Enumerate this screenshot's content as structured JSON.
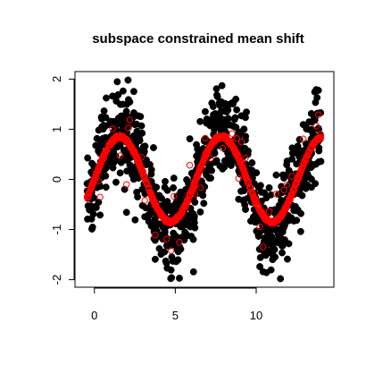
{
  "chart_data": {
    "type": "scatter",
    "title": "subspace constrained mean shift",
    "xlabel": "",
    "ylabel": "",
    "xlim": [
      -1.2,
      14.8
    ],
    "ylim": [
      -2.15,
      2.15
    ],
    "xticks": [
      0,
      5,
      10
    ],
    "xtick_labels": [
      "0",
      "5",
      "10"
    ],
    "yticks": [
      -2,
      -1,
      0,
      1,
      2
    ],
    "ytick_labels": [
      "-2",
      "-1",
      "0",
      "1",
      "2"
    ],
    "grid": false,
    "series": [
      {
        "marker": "filled-circle",
        "color": "#000000",
        "model": "y = sin(x) + noise",
        "x_range": [
          -0.5,
          14
        ],
        "count": 1000
      },
      {
        "marker": "open-circle",
        "color": "#ff0000",
        "model": "points shifted onto ridge ~0.85*sin(x) with stragglers",
        "x_range": [
          -0.5,
          14
        ],
        "count": 1000
      }
    ]
  }
}
